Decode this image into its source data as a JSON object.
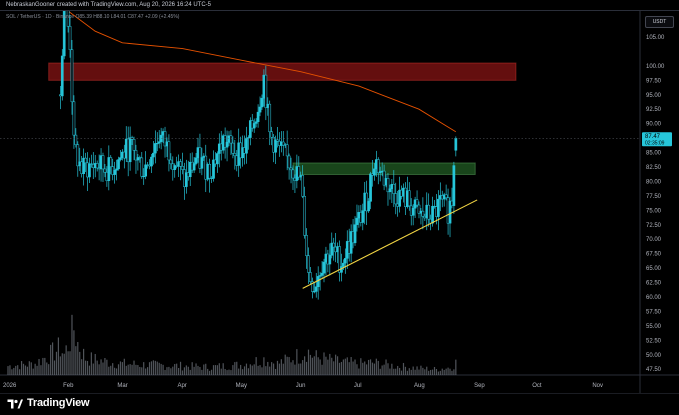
{
  "header": {
    "caption": "NebraskanGooner created with TradingView.com, Aug 20, 2026 16:24 UTC-5",
    "symbol_line": "SOL / TetherUS · 1D · Binance  O85.39  H88.10  L84.01  C87.47  +2.09 (+2.45%)",
    "currency": "USDT"
  },
  "footer": {
    "brand": "TradingView"
  },
  "colors": {
    "up_candle": "#26c6da",
    "down_candle": "#26c6da",
    "volume": "#6b7078",
    "resistance_zone": "#b71c1c",
    "support_zone": "#2e7d32",
    "trendline": "#f2d544",
    "moving_average_1": "#e65100",
    "moving_average_2": "#7a1f1f",
    "last_price_tag": "#26c6da"
  },
  "chart_data": {
    "type": "candlestick",
    "title": "SOL / TetherUS · 1D · Binance",
    "ylabel": "USDT",
    "ylim": [
      46.5,
      109.5
    ],
    "price_ticks": [
      "105.00",
      "100.00",
      "97.50",
      "95.00",
      "92.50",
      "90.00",
      "85.00",
      "82.50",
      "80.00",
      "77.50",
      "75.00",
      "72.50",
      "70.00",
      "67.50",
      "65.00",
      "62.50",
      "60.00",
      "57.50",
      "55.00",
      "52.50",
      "50.00",
      "47.50"
    ],
    "time_ticks": [
      "2026",
      "Feb",
      "Mar",
      "Apr",
      "May",
      "Jun",
      "Jul",
      "Aug",
      "Sep",
      "Oct",
      "Nov"
    ],
    "last_price": {
      "value": 87.47,
      "label": "87.47",
      "countdown": "02:35:09"
    },
    "zones": [
      {
        "name": "resistance",
        "from": "Jan 22",
        "to": "Sep 20",
        "low": 97.5,
        "high": 100.5
      },
      {
        "name": "support",
        "from": "May 28",
        "to": "Aug 30",
        "low": 81.2,
        "high": 83.2
      }
    ],
    "trendline": {
      "from": {
        "date": "Jun 2",
        "price": 61.5
      },
      "to": {
        "date": "Aug 31",
        "price": 76.8
      }
    },
    "anchors": [
      [
        "Jan 28",
        95
      ],
      [
        "Jan 30",
        112
      ],
      [
        "Feb 2",
        104
      ],
      [
        "Feb 4",
        86
      ],
      [
        "Feb 8",
        82
      ],
      [
        "Feb 15",
        83
      ],
      [
        "Feb 22",
        82
      ],
      [
        "Mar 5",
        86
      ],
      [
        "Mar 12",
        82
      ],
      [
        "Mar 20",
        88
      ],
      [
        "Mar 26",
        85
      ],
      [
        "Apr 2",
        80
      ],
      [
        "Apr 8",
        84
      ],
      [
        "Apr 15",
        82
      ],
      [
        "Apr 22",
        87
      ],
      [
        "Apr 29",
        85
      ],
      [
        "May 4",
        86
      ],
      [
        "May 10",
        93
      ],
      [
        "May 13",
        98
      ],
      [
        "May 16",
        88
      ],
      [
        "May 22",
        85
      ],
      [
        "May 27",
        83
      ],
      [
        "Jun 1",
        80
      ],
      [
        "Jun 3",
        72
      ],
      [
        "Jun 5",
        64
      ],
      [
        "Jun 8",
        62
      ],
      [
        "Jun 12",
        66
      ],
      [
        "Jun 17",
        68
      ],
      [
        "Jun 22",
        66
      ],
      [
        "Jun 27",
        70
      ],
      [
        "Jul 2",
        74
      ],
      [
        "Jul 6",
        78
      ],
      [
        "Jul 9",
        84
      ],
      [
        "Jul 13",
        81
      ],
      [
        "Jul 19",
        78
      ],
      [
        "Jul 25",
        77
      ],
      [
        "Aug 1",
        74
      ],
      [
        "Aug 8",
        74
      ],
      [
        "Aug 12",
        76
      ],
      [
        "Aug 16",
        75
      ],
      [
        "Aug 18",
        77
      ],
      [
        "Aug 19",
        84
      ],
      [
        "Aug 20",
        87.47
      ]
    ],
    "moving_average": [
      [
        "Jan 30",
        110
      ],
      [
        "Feb 15",
        106
      ],
      [
        "Mar 1",
        104
      ],
      [
        "Apr 1",
        103
      ],
      [
        "May 1",
        101
      ],
      [
        "Jun 1",
        99
      ],
      [
        "Jul 1",
        96.5
      ],
      [
        "Aug 1",
        92.5
      ],
      [
        "Aug 20",
        88.6
      ]
    ],
    "volume": [
      [
        "Jan 1",
        8
      ],
      [
        "Jan 15",
        10
      ],
      [
        "Jan 28",
        24
      ],
      [
        "Jan 30",
        18
      ],
      [
        "Feb 3",
        36
      ],
      [
        "Feb 4",
        42
      ],
      [
        "Feb 6",
        28
      ],
      [
        "Feb 10",
        15
      ],
      [
        "Feb 20",
        12
      ],
      [
        "Mar 1",
        10
      ],
      [
        "Mar 15",
        9
      ],
      [
        "Apr 1",
        8
      ],
      [
        "Apr 15",
        7
      ],
      [
        "May 1",
        9
      ],
      [
        "May 13",
        14
      ],
      [
        "May 20",
        10
      ],
      [
        "Jun 1",
        18
      ],
      [
        "Jun 4",
        22
      ],
      [
        "Jun 8",
        16
      ],
      [
        "Jun 20",
        12
      ],
      [
        "Jul 1",
        10
      ],
      [
        "Jul 8",
        11
      ],
      [
        "Jul 20",
        8
      ],
      [
        "Aug 1",
        6
      ],
      [
        "Aug 10",
        5
      ],
      [
        "Aug 18",
        7
      ],
      [
        "Aug 20",
        11
      ]
    ],
    "grid": false,
    "legend": "none"
  }
}
